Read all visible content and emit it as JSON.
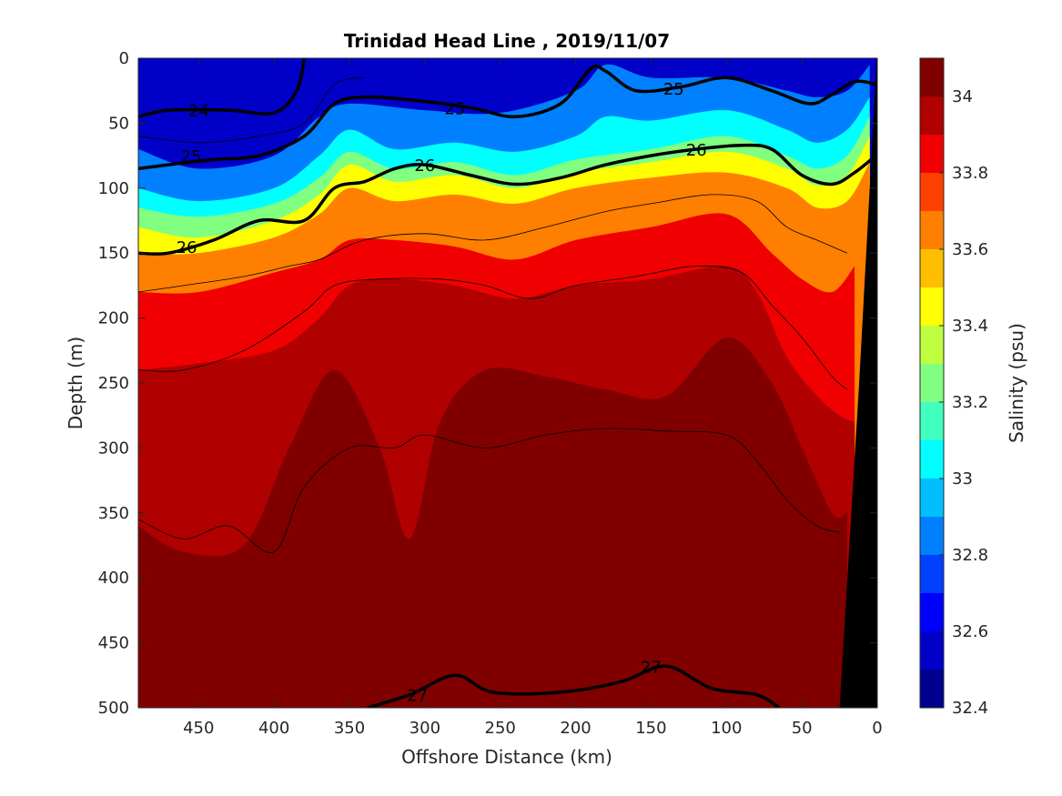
{
  "chart_data": {
    "type": "heatmap",
    "title": "Trinidad Head Line , 2019/11/07",
    "xlabel": "Offshore Distance (km)",
    "ylabel": "Depth (m)",
    "xlim": [
      490,
      0
    ],
    "ylim": [
      0,
      500
    ],
    "x_reversed": true,
    "y_reversed": true,
    "x_ticks": [
      450,
      400,
      350,
      300,
      250,
      200,
      150,
      100,
      50,
      0
    ],
    "y_ticks": [
      0,
      50,
      100,
      150,
      200,
      250,
      300,
      350,
      400,
      450,
      500
    ],
    "colorbar": {
      "label": "Salinity (psu)",
      "range": [
        32.4,
        34.1
      ],
      "ticks": [
        32.4,
        32.6,
        32.8,
        33,
        33.2,
        33.4,
        33.6,
        33.8,
        34
      ],
      "levels": [
        {
          "value": 32.4,
          "color": "#00008f"
        },
        {
          "value": 32.5,
          "color": "#0000c8"
        },
        {
          "value": 32.6,
          "color": "#0000ff"
        },
        {
          "value": 32.7,
          "color": "#0040ff"
        },
        {
          "value": 32.8,
          "color": "#0080ff"
        },
        {
          "value": 32.9,
          "color": "#00bfff"
        },
        {
          "value": 33.0,
          "color": "#00ffff"
        },
        {
          "value": 33.1,
          "color": "#40ffbf"
        },
        {
          "value": 33.2,
          "color": "#80ff80"
        },
        {
          "value": 33.3,
          "color": "#bfff40"
        },
        {
          "value": 33.4,
          "color": "#ffff00"
        },
        {
          "value": 33.5,
          "color": "#ffbf00"
        },
        {
          "value": 33.6,
          "color": "#ff8000"
        },
        {
          "value": 33.7,
          "color": "#ff4000"
        },
        {
          "value": 33.8,
          "color": "#f00000"
        },
        {
          "value": 33.9,
          "color": "#b00000"
        },
        {
          "value": 34.0,
          "color": "#800000"
        }
      ]
    },
    "salinity_bands": [
      {
        "level": 32.5,
        "depth_at": [
          [
            490,
            35
          ],
          [
            460,
            45
          ],
          [
            420,
            50
          ],
          [
            390,
            40
          ],
          [
            370,
            10
          ],
          [
            350,
            0
          ]
        ]
      },
      {
        "level": 32.8,
        "depth_at": [
          [
            490,
            70
          ],
          [
            450,
            85
          ],
          [
            400,
            75
          ],
          [
            370,
            45
          ],
          [
            350,
            35
          ],
          [
            300,
            40
          ],
          [
            250,
            42
          ],
          [
            200,
            25
          ],
          [
            180,
            5
          ],
          [
            150,
            15
          ],
          [
            100,
            15
          ],
          [
            60,
            25
          ],
          [
            40,
            30
          ],
          [
            20,
            25
          ],
          [
            5,
            5
          ]
        ]
      },
      {
        "level": 33.0,
        "depth_at": [
          [
            490,
            100
          ],
          [
            450,
            110
          ],
          [
            400,
            100
          ],
          [
            370,
            75
          ],
          [
            350,
            55
          ],
          [
            320,
            70
          ],
          [
            280,
            65
          ],
          [
            240,
            72
          ],
          [
            200,
            60
          ],
          [
            180,
            45
          ],
          [
            150,
            48
          ],
          [
            100,
            40
          ],
          [
            60,
            55
          ],
          [
            40,
            65
          ],
          [
            20,
            55
          ],
          [
            5,
            30
          ]
        ]
      },
      {
        "level": 33.2,
        "depth_at": [
          [
            490,
            115
          ],
          [
            450,
            122
          ],
          [
            400,
            112
          ],
          [
            370,
            92
          ],
          [
            350,
            72
          ],
          [
            320,
            85
          ],
          [
            280,
            80
          ],
          [
            240,
            90
          ],
          [
            200,
            78
          ],
          [
            150,
            70
          ],
          [
            100,
            60
          ],
          [
            60,
            75
          ],
          [
            40,
            85
          ],
          [
            20,
            75
          ],
          [
            5,
            45
          ]
        ]
      },
      {
        "level": 33.4,
        "depth_at": [
          [
            490,
            130
          ],
          [
            450,
            138
          ],
          [
            400,
            125
          ],
          [
            370,
            105
          ],
          [
            350,
            82
          ],
          [
            320,
            95
          ],
          [
            280,
            90
          ],
          [
            240,
            100
          ],
          [
            200,
            88
          ],
          [
            150,
            80
          ],
          [
            100,
            72
          ],
          [
            60,
            85
          ],
          [
            40,
            98
          ],
          [
            20,
            90
          ],
          [
            5,
            60
          ]
        ]
      },
      {
        "level": 33.6,
        "depth_at": [
          [
            490,
            150
          ],
          [
            450,
            150
          ],
          [
            400,
            138
          ],
          [
            370,
            120
          ],
          [
            350,
            100
          ],
          [
            320,
            110
          ],
          [
            280,
            105
          ],
          [
            240,
            112
          ],
          [
            200,
            100
          ],
          [
            150,
            92
          ],
          [
            100,
            88
          ],
          [
            60,
            100
          ],
          [
            40,
            115
          ],
          [
            20,
            110
          ],
          [
            5,
            80
          ]
        ]
      },
      {
        "level": 33.8,
        "depth_at": [
          [
            490,
            180
          ],
          [
            450,
            180
          ],
          [
            400,
            165
          ],
          [
            370,
            155
          ],
          [
            350,
            140
          ],
          [
            320,
            140
          ],
          [
            280,
            145
          ],
          [
            240,
            155
          ],
          [
            200,
            140
          ],
          [
            150,
            130
          ],
          [
            100,
            120
          ],
          [
            70,
            150
          ],
          [
            50,
            170
          ],
          [
            30,
            180
          ],
          [
            15,
            160
          ]
        ]
      },
      {
        "level": 33.9,
        "depth_at": [
          [
            490,
            240
          ],
          [
            450,
            235
          ],
          [
            400,
            225
          ],
          [
            370,
            200
          ],
          [
            350,
            175
          ],
          [
            320,
            170
          ],
          [
            280,
            175
          ],
          [
            240,
            185
          ],
          [
            200,
            175
          ],
          [
            150,
            170
          ],
          [
            100,
            160
          ],
          [
            80,
            180
          ],
          [
            60,
            230
          ],
          [
            40,
            260
          ],
          [
            25,
            275
          ],
          [
            15,
            280
          ]
        ]
      },
      {
        "level": 34.0,
        "depth_at": [
          [
            490,
            360
          ],
          [
            460,
            380
          ],
          [
            420,
            375
          ],
          [
            390,
            300
          ],
          [
            360,
            240
          ],
          [
            330,
            300
          ],
          [
            310,
            370
          ],
          [
            290,
            280
          ],
          [
            260,
            240
          ],
          [
            220,
            245
          ],
          [
            180,
            255
          ],
          [
            140,
            260
          ],
          [
            100,
            215
          ],
          [
            70,
            250
          ],
          [
            50,
            300
          ],
          [
            30,
            350
          ],
          [
            20,
            350
          ]
        ]
      },
      {
        "level": 34.1,
        "depth_at": [
          [
            490,
            500
          ],
          [
            460,
            490
          ],
          [
            420,
            480
          ],
          [
            380,
            440
          ],
          [
            360,
            400
          ],
          [
            340,
            440
          ],
          [
            320,
            480
          ],
          [
            300,
            460
          ],
          [
            280,
            430
          ],
          [
            260,
            470
          ],
          [
            220,
            455
          ],
          [
            180,
            450
          ],
          [
            140,
            440
          ],
          [
            100,
            460
          ],
          [
            60,
            475
          ],
          [
            30,
            460
          ],
          [
            25,
            480
          ]
        ]
      }
    ],
    "density_contours": [
      {
        "value": 24,
        "label": "24",
        "points": [
          [
            490,
            45
          ],
          [
            470,
            40
          ],
          [
            430,
            40
          ],
          [
            400,
            42
          ],
          [
            385,
            25
          ],
          [
            380,
            0
          ]
        ]
      },
      {
        "value": 25,
        "label": "25",
        "points": [
          [
            490,
            85
          ],
          [
            470,
            82
          ],
          [
            440,
            78
          ],
          [
            410,
            75
          ],
          [
            380,
            60
          ],
          [
            360,
            35
          ],
          [
            340,
            30
          ],
          [
            310,
            32
          ],
          [
            270,
            38
          ],
          [
            240,
            45
          ],
          [
            210,
            35
          ],
          [
            190,
            8
          ],
          [
            180,
            10
          ],
          [
            160,
            25
          ],
          [
            130,
            22
          ],
          [
            100,
            15
          ],
          [
            70,
            25
          ],
          [
            45,
            35
          ],
          [
            30,
            28
          ],
          [
            15,
            18
          ],
          [
            1,
            20
          ]
        ]
      },
      {
        "value": 26,
        "label": "26",
        "points": [
          [
            490,
            150
          ],
          [
            470,
            150
          ],
          [
            440,
            140
          ],
          [
            410,
            125
          ],
          [
            380,
            125
          ],
          [
            360,
            100
          ],
          [
            340,
            95
          ],
          [
            320,
            85
          ],
          [
            300,
            82
          ],
          [
            270,
            90
          ],
          [
            240,
            97
          ],
          [
            210,
            92
          ],
          [
            180,
            82
          ],
          [
            150,
            75
          ],
          [
            120,
            70
          ],
          [
            90,
            67
          ],
          [
            70,
            70
          ],
          [
            50,
            90
          ],
          [
            30,
            97
          ],
          [
            15,
            88
          ],
          [
            1,
            75
          ]
        ]
      },
      {
        "value": 27,
        "label": "27",
        "points": [
          [
            338,
            500
          ],
          [
            310,
            490
          ],
          [
            280,
            475
          ],
          [
            255,
            488
          ],
          [
            210,
            488
          ],
          [
            170,
            480
          ],
          [
            140,
            468
          ],
          [
            110,
            485
          ],
          [
            80,
            490
          ],
          [
            65,
            500
          ]
        ]
      }
    ],
    "thin_contours": [
      {
        "points": [
          [
            490,
            60
          ],
          [
            450,
            65
          ],
          [
            410,
            60
          ],
          [
            380,
            50
          ],
          [
            360,
            20
          ],
          [
            340,
            15
          ]
        ]
      },
      {
        "points": [
          [
            490,
            180
          ],
          [
            460,
            175
          ],
          [
            420,
            168
          ],
          [
            390,
            160
          ],
          [
            370,
            155
          ],
          [
            340,
            140
          ],
          [
            300,
            135
          ],
          [
            260,
            140
          ],
          [
            220,
            130
          ],
          [
            180,
            118
          ],
          [
            150,
            112
          ],
          [
            110,
            105
          ],
          [
            80,
            110
          ],
          [
            60,
            130
          ],
          [
            40,
            140
          ],
          [
            20,
            150
          ]
        ]
      },
      {
        "points": [
          [
            490,
            240
          ],
          [
            460,
            240
          ],
          [
            420,
            225
          ],
          [
            380,
            195
          ],
          [
            360,
            175
          ],
          [
            330,
            170
          ],
          [
            290,
            170
          ],
          [
            260,
            175
          ],
          [
            230,
            185
          ],
          [
            200,
            175
          ],
          [
            160,
            168
          ],
          [
            120,
            160
          ],
          [
            90,
            165
          ],
          [
            70,
            190
          ],
          [
            50,
            215
          ],
          [
            30,
            245
          ],
          [
            20,
            255
          ]
        ]
      },
      {
        "points": [
          [
            490,
            355
          ],
          [
            460,
            370
          ],
          [
            430,
            360
          ],
          [
            400,
            380
          ],
          [
            380,
            330
          ],
          [
            350,
            300
          ],
          [
            320,
            300
          ],
          [
            300,
            290
          ],
          [
            260,
            300
          ],
          [
            220,
            290
          ],
          [
            180,
            285
          ],
          [
            140,
            287
          ],
          [
            100,
            290
          ],
          [
            80,
            310
          ],
          [
            60,
            340
          ],
          [
            40,
            360
          ],
          [
            25,
            365
          ]
        ]
      }
    ],
    "bathymetry": {
      "color": "#000000",
      "shore_points": [
        [
          0,
          0
        ],
        [
          0,
          500
        ],
        [
          25,
          500
        ],
        [
          12,
          200
        ],
        [
          2,
          0
        ]
      ]
    }
  }
}
